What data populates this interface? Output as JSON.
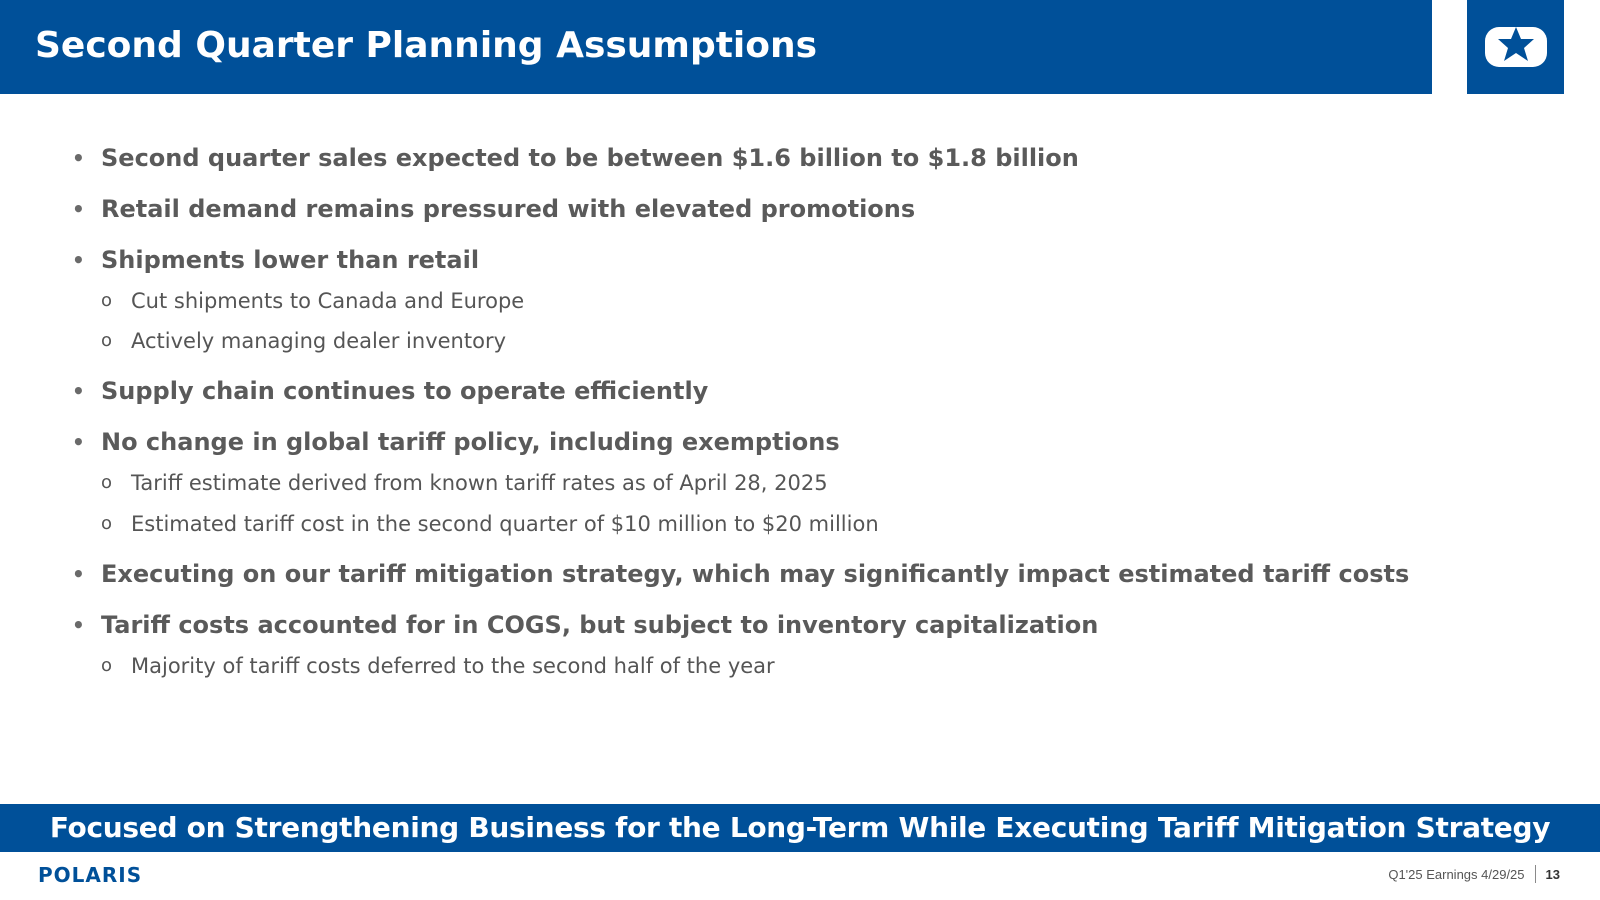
{
  "slide": {
    "title": "Second Quarter Planning Assumptions",
    "bullets": [
      {
        "level": 1,
        "marker": "•",
        "text": "Second quarter sales expected to be between $1.6 billion to $1.8 billion"
      },
      {
        "level": 1,
        "marker": "•",
        "text": "Retail demand remains pressured with elevated promotions"
      },
      {
        "level": 1,
        "marker": "•",
        "text": "Shipments lower than retail"
      },
      {
        "level": 2,
        "marker": "o",
        "text": "Cut shipments to Canada and Europe"
      },
      {
        "level": 2,
        "marker": "o",
        "text": "Actively managing dealer inventory"
      },
      {
        "level": 1,
        "marker": "•",
        "text": "Supply chain continues to operate efficiently"
      },
      {
        "level": 1,
        "marker": "•",
        "text": "No change in global tariff policy, including exemptions"
      },
      {
        "level": 2,
        "marker": "o",
        "text": "Tariff estimate derived from known tariff rates as of April 28, 2025"
      },
      {
        "level": 2,
        "marker": "o",
        "text": "Estimated tariff cost in the second quarter of $10 million to $20 million"
      },
      {
        "level": 1,
        "marker": "•",
        "text": "Executing on our tariff mitigation strategy, which may significantly impact estimated tariff costs"
      },
      {
        "level": 1,
        "marker": "•",
        "text": "Tariff costs accounted for in COGS, but subject to inventory capitalization"
      },
      {
        "level": 2,
        "marker": "o",
        "text": "Majority of tariff costs deferred to the second half of the year"
      }
    ],
    "banner": "Focused on Strengthening Business for the Long-Term While Executing Tariff Mitigation Strategy"
  },
  "footer": {
    "brand": "POLARIS",
    "date_label": "Q1'25 Earnings 4/29/25",
    "page_number": "13"
  },
  "icons": {
    "header_logo": "polaris-star-icon",
    "footer_logo": "polaris-wordmark"
  },
  "colors": {
    "brand_blue": "#005099",
    "text_gray": "#5a5a5a",
    "white": "#ffffff"
  }
}
